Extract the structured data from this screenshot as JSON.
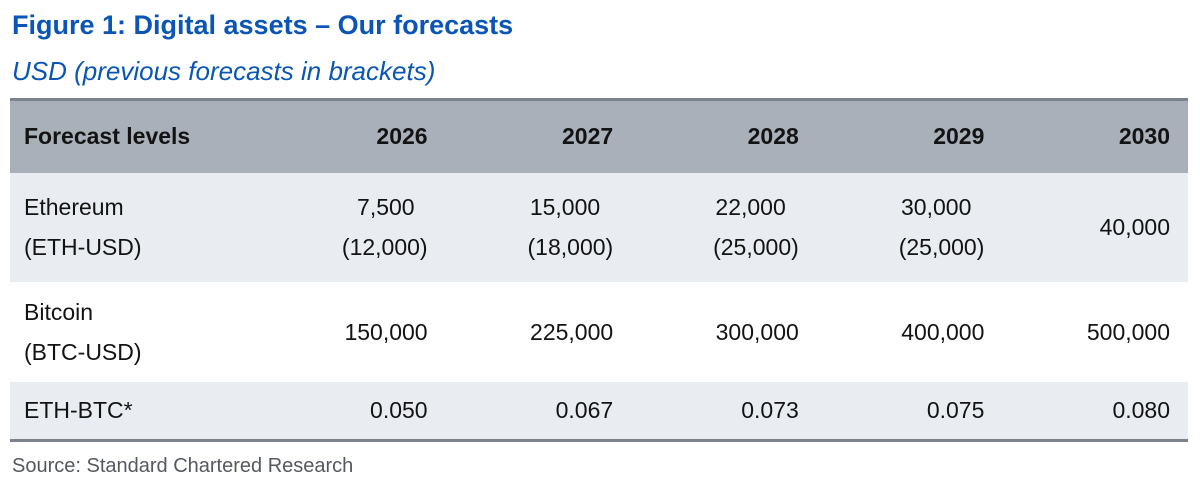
{
  "figure": {
    "title": "Figure 1: Digital assets – Our forecasts",
    "subtitle": "USD (previous forecasts in brackets)",
    "source": "Source: Standard Chartered Research"
  },
  "table": {
    "columns": [
      "Forecast levels",
      "2026",
      "2027",
      "2028",
      "2029",
      "2030"
    ],
    "rows": [
      {
        "asset": "Ethereum",
        "ticker": "(ETH-USD)",
        "values": [
          "7,500",
          "15,000",
          "22,000",
          "30,000",
          "40,000"
        ],
        "previous": [
          "(12,000)",
          "(18,000)",
          "(25,000)",
          "(25,000)",
          ""
        ]
      },
      {
        "asset": "Bitcoin",
        "ticker": "(BTC-USD)",
        "values": [
          "150,000",
          "225,000",
          "300,000",
          "400,000",
          "500,000"
        ],
        "previous": [
          "",
          "",
          "",
          "",
          ""
        ]
      },
      {
        "asset": "ETH-BTC*",
        "ticker": "",
        "values": [
          "0.050",
          "0.067",
          "0.073",
          "0.075",
          "0.080"
        ],
        "previous": [
          "",
          "",
          "",
          "",
          ""
        ]
      }
    ]
  },
  "chart_data": {
    "type": "table",
    "title": "Figure 1: Digital assets – Our forecasts",
    "subtitle": "USD (previous forecasts in brackets)",
    "categories": [
      "2026",
      "2027",
      "2028",
      "2029",
      "2030"
    ],
    "series": [
      {
        "name": "Ethereum (ETH-USD) forecast",
        "values": [
          7500,
          15000,
          22000,
          30000,
          40000
        ]
      },
      {
        "name": "Ethereum (ETH-USD) previous forecast",
        "values": [
          12000,
          18000,
          25000,
          25000,
          null
        ]
      },
      {
        "name": "Bitcoin (BTC-USD) forecast",
        "values": [
          150000,
          225000,
          300000,
          400000,
          500000
        ]
      },
      {
        "name": "ETH-BTC* forecast",
        "values": [
          0.05,
          0.067,
          0.073,
          0.075,
          0.08
        ]
      }
    ],
    "source": "Source: Standard Chartered Research"
  },
  "colors": {
    "accent_blue": "#0a55b5",
    "header_bg": "#a9b0ba",
    "row_alt_bg": "#e9edf2",
    "rule": "#7a828c",
    "cell_text": "#131313",
    "source_text": "#55595f"
  }
}
